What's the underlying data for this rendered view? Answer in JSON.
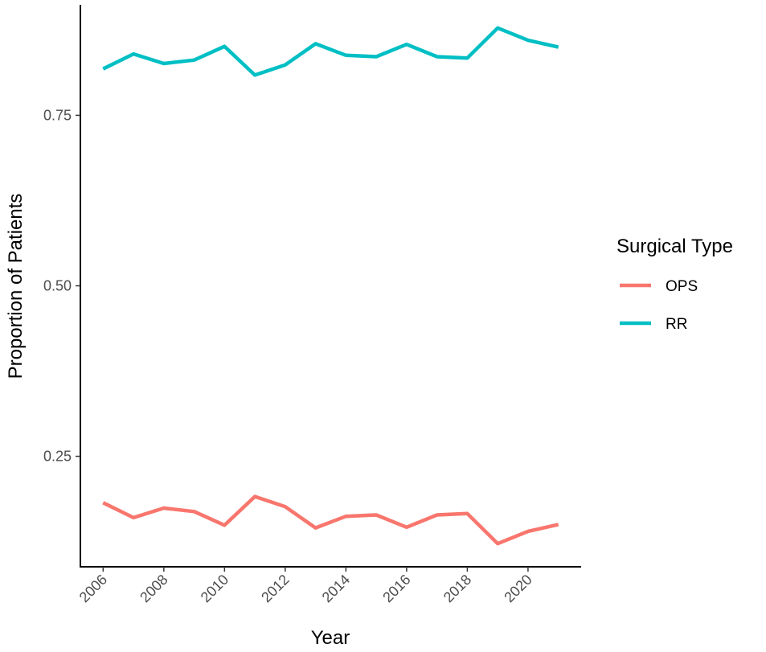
{
  "chart_data": {
    "type": "line",
    "title": "",
    "xlabel": "Year",
    "ylabel": "Proportion of Patients",
    "x": [
      2006,
      2007,
      2008,
      2009,
      2010,
      2011,
      2012,
      2013,
      2014,
      2015,
      2016,
      2017,
      2018,
      2019,
      2020,
      2021
    ],
    "series": [
      {
        "name": "OPS",
        "color": "#F8766D",
        "values": [
          0.182,
          0.16,
          0.174,
          0.169,
          0.149,
          0.191,
          0.176,
          0.145,
          0.162,
          0.164,
          0.146,
          0.164,
          0.166,
          0.122,
          0.14,
          0.15
        ]
      },
      {
        "name": "RR",
        "color": "#00BFC4",
        "values": [
          0.818,
          0.84,
          0.826,
          0.831,
          0.851,
          0.809,
          0.824,
          0.855,
          0.838,
          0.836,
          0.854,
          0.836,
          0.834,
          0.878,
          0.86,
          0.85
        ]
      }
    ],
    "xlim": [
      2005.25,
      2021.75
    ],
    "ylim": [
      0.088,
      0.912
    ],
    "xticks": [
      2006,
      2008,
      2010,
      2012,
      2014,
      2016,
      2018,
      2020
    ],
    "xtick_labels": [
      "2006",
      "2008",
      "2010",
      "2012",
      "2014",
      "2016",
      "2018",
      "2020"
    ],
    "yticks": [
      0.25,
      0.5,
      0.75
    ],
    "ytick_labels": [
      "0.25",
      "0.50",
      "0.75"
    ],
    "grid": false,
    "legend": {
      "title": "Surgical Type",
      "position": "right",
      "entries": [
        "OPS",
        "RR"
      ]
    }
  }
}
